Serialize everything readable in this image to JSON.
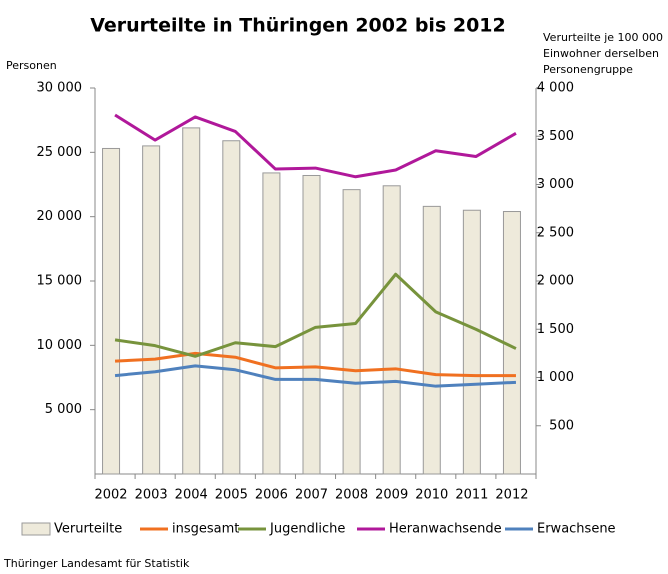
{
  "chart_data": {
    "type": "bar",
    "title": "Verurteilte in Thüringen 2002 bis 2012",
    "ylabel": "Personen",
    "y2label": [
      "Verurteilte je 100 000",
      "Einwohner  derselben",
      "Personengruppe"
    ],
    "source": "Thüringer Landesamt für Statistik",
    "categories": [
      "2002",
      "2003",
      "2004",
      "2005",
      "2006",
      "2007",
      "2008",
      "2009",
      "2010",
      "2011",
      "2012"
    ],
    "ylim": [
      0,
      30000
    ],
    "yticks": [
      {
        "value": 5000,
        "label": "5 000"
      },
      {
        "value": 10000,
        "label": "10 000"
      },
      {
        "value": 15000,
        "label": "15 000"
      },
      {
        "value": 20000,
        "label": "20 000"
      },
      {
        "value": 25000,
        "label": "25 000"
      },
      {
        "value": 30000,
        "label": "30 000"
      }
    ],
    "y2lim": [
      0,
      4000
    ],
    "y2ticks": [
      500,
      {
        "value": 1000,
        "label": "1 000"
      },
      {
        "value": 1500,
        "label": "1 500"
      },
      {
        "value": 2000,
        "label": "2 000"
      },
      {
        "value": 2500,
        "label": "2 500"
      },
      {
        "value": 3000,
        "label": "3 000"
      },
      {
        "value": 3500,
        "label": "3 500"
      },
      {
        "value": 4000,
        "label": "4 000"
      }
    ],
    "grid": false,
    "legend": "bottom",
    "series": [
      {
        "name": "Verurteilte",
        "type": "bar",
        "color": "#eeeadb",
        "values": [
          25300,
          25500,
          26900,
          25900,
          23400,
          23200,
          22100,
          22400,
          20800,
          20500,
          20400
        ]
      },
      {
        "name": "insgesamt",
        "type": "line",
        "axis": "y2",
        "color": "#f07020",
        "values": [
          1170,
          1190,
          1250,
          1210,
          1100,
          1110,
          1070,
          1090,
          1030,
          1020,
          1020
        ]
      },
      {
        "name": "Jugendliche",
        "type": "line",
        "axis": "y2",
        "color": "#77933c",
        "values": [
          1390,
          1330,
          1220,
          1360,
          1320,
          1520,
          1560,
          2070,
          1680,
          1500,
          1300
        ]
      },
      {
        "name": "Heranwachsende",
        "type": "line",
        "axis": "y2",
        "color": "#b0189a",
        "values": [
          3720,
          3460,
          3700,
          3550,
          3160,
          3170,
          3080,
          3150,
          3350,
          3290,
          3530
        ]
      },
      {
        "name": "Erwachsene",
        "type": "line",
        "axis": "y2",
        "color": "#4f81bd",
        "values": [
          1020,
          1060,
          1120,
          1080,
          980,
          980,
          940,
          960,
          910,
          930,
          950
        ]
      }
    ]
  }
}
